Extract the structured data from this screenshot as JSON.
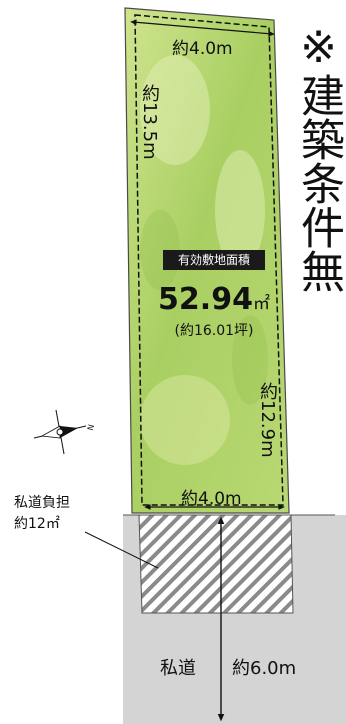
{
  "notice": "※建築条件無",
  "lot": {
    "area_badge": "有効敷地面積",
    "area_value": "52.94",
    "area_unit": "㎡",
    "area_tsubo": "(約16.01坪)"
  },
  "dimensions": {
    "top": "約4.0m",
    "left": "約13.5m",
    "right": "約12.9m",
    "bottom": "約4.0m"
  },
  "private_road": {
    "burden_line1": "私道負担",
    "burden_line2": "約12㎡",
    "label": "私道",
    "width": "約6.0m"
  },
  "compass": {
    "north_mark": "N"
  },
  "colors": {
    "lot_green": "#a9cf62",
    "lot_green_light": "#d6e89a",
    "road_gray": "#d4d4d4",
    "hatch": "#8a8a8a",
    "text": "#111111"
  }
}
